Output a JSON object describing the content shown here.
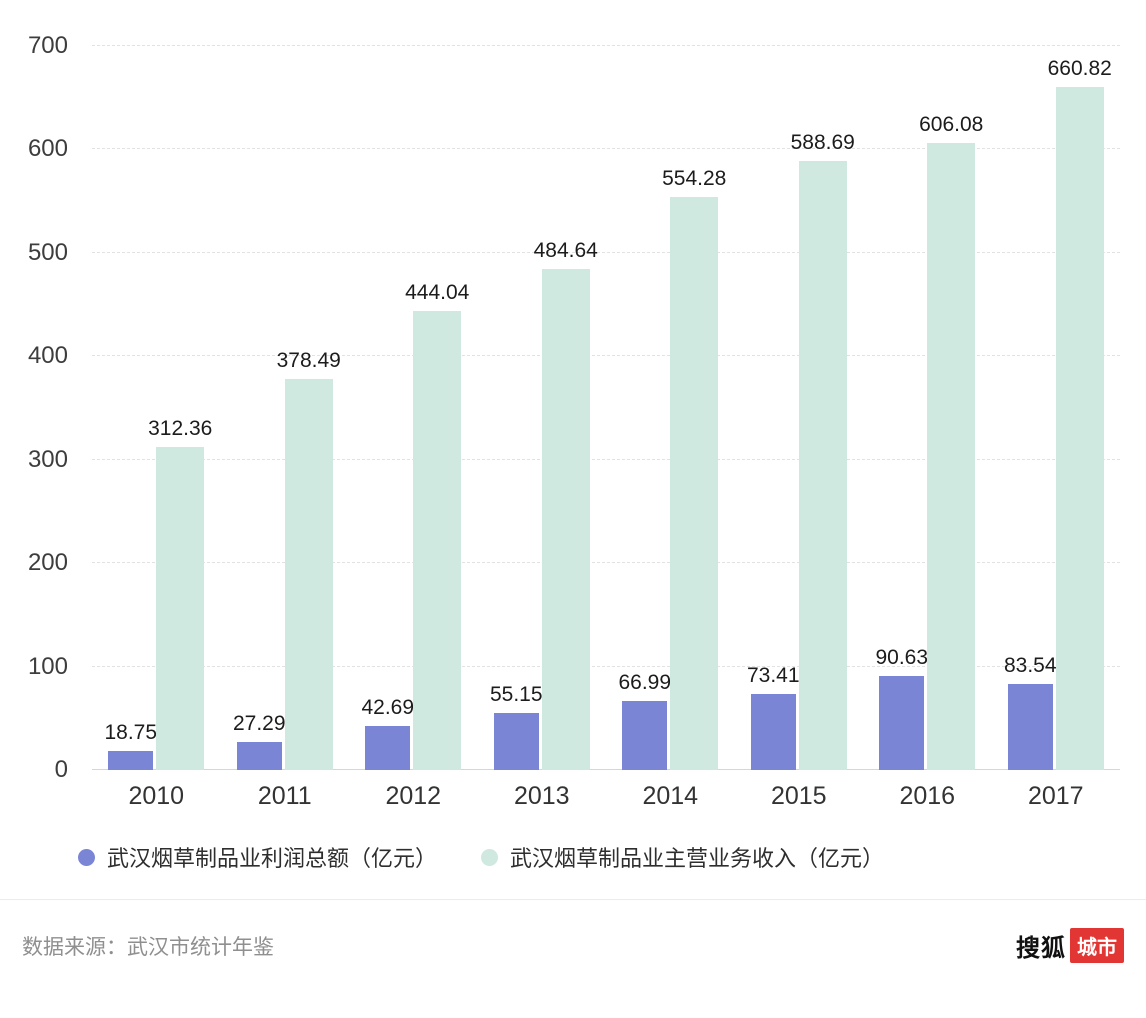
{
  "chart_data": {
    "type": "bar",
    "title": "",
    "categories": [
      "2010",
      "2011",
      "2012",
      "2013",
      "2014",
      "2015",
      "2016",
      "2017"
    ],
    "series": [
      {
        "name": "武汉烟草制品业利润总额（亿元）",
        "color": "#7b85d6",
        "values": [
          18.75,
          27.29,
          42.69,
          55.15,
          66.99,
          73.41,
          90.63,
          83.54
        ]
      },
      {
        "name": "武汉烟草制品业主营业务收入（亿元）",
        "color": "#cfe8e0",
        "values": [
          312.36,
          378.49,
          444.04,
          484.64,
          554.28,
          588.69,
          606.08,
          660.82
        ]
      }
    ],
    "xlabel": "",
    "ylabel": "",
    "ylim": [
      0,
      700
    ],
    "yticks": [
      0,
      100,
      200,
      300,
      400,
      500,
      600,
      700
    ],
    "grid": "horizontal-dashed",
    "legend_position": "bottom-left",
    "value_labels": "above-bars"
  },
  "footer": {
    "source": "数据来源：武汉市统计年鉴",
    "logo_black": "搜狐",
    "logo_red": "城市"
  }
}
